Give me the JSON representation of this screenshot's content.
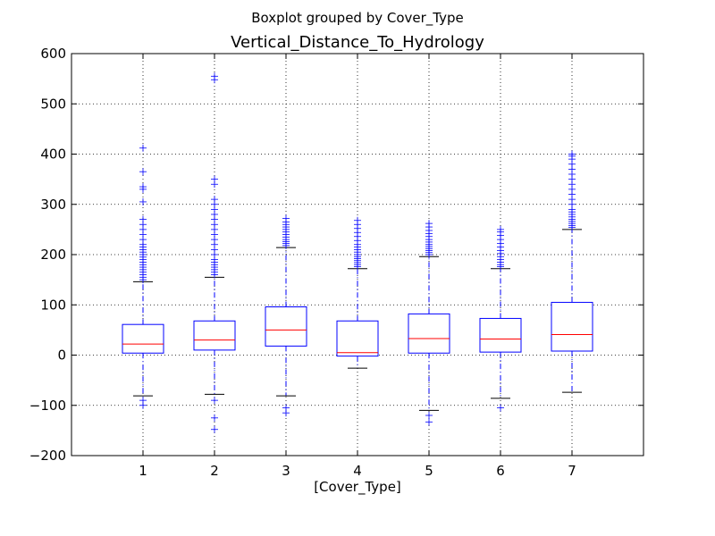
{
  "chart_data": {
    "type": "boxplot",
    "suptitle": "Boxplot grouped by Cover_Type",
    "title": "Vertical_Distance_To_Hydrology",
    "xlabel": "[Cover_Type]",
    "ylabel": "",
    "ylim": [
      -200,
      600
    ],
    "yticks": [
      -200,
      -100,
      0,
      100,
      200,
      300,
      400,
      500,
      600
    ],
    "ytick_labels": [
      "−200",
      "−100",
      "0",
      "100",
      "200",
      "300",
      "400",
      "500",
      "600"
    ],
    "grid": true,
    "categories": [
      "1",
      "2",
      "3",
      "4",
      "5",
      "6",
      "7"
    ],
    "boxes": [
      {
        "category": "1",
        "whisker_low": -81,
        "q1": 4,
        "median": 22,
        "q3": 61,
        "whisker_high": 146,
        "outliers": [
          -90,
          -100,
          150,
          155,
          160,
          165,
          170,
          175,
          180,
          185,
          190,
          195,
          200,
          205,
          210,
          215,
          220,
          230,
          240,
          250,
          260,
          270,
          305,
          330,
          335,
          365,
          412
        ]
      },
      {
        "category": "2",
        "whisker_low": -78,
        "q1": 10,
        "median": 30,
        "q3": 68,
        "whisker_high": 155,
        "outliers": [
          -90,
          -125,
          -148,
          160,
          165,
          170,
          175,
          180,
          185,
          190,
          200,
          210,
          220,
          230,
          240,
          250,
          260,
          270,
          280,
          290,
          300,
          310,
          340,
          350,
          548,
          555
        ]
      },
      {
        "category": "3",
        "whisker_low": -81,
        "q1": 18,
        "median": 50,
        "q3": 96,
        "whisker_high": 214,
        "outliers": [
          -105,
          -115,
          218,
          222,
          226,
          230,
          235,
          240,
          245,
          250,
          255,
          260,
          265,
          272
        ]
      },
      {
        "category": "4",
        "whisker_low": -26,
        "q1": -2,
        "median": 5,
        "q3": 68,
        "whisker_high": 172,
        "outliers": [
          176,
          180,
          184,
          188,
          192,
          196,
          200,
          205,
          210,
          215,
          220,
          228,
          236,
          244,
          252,
          260,
          268
        ]
      },
      {
        "category": "5",
        "whisker_low": -110,
        "q1": 4,
        "median": 33,
        "q3": 82,
        "whisker_high": 196,
        "outliers": [
          -120,
          -133,
          200,
          204,
          208,
          212,
          216,
          220,
          225,
          230,
          236,
          242,
          248,
          255,
          262
        ]
      },
      {
        "category": "6",
        "whisker_low": -86,
        "q1": 6,
        "median": 32,
        "q3": 73,
        "whisker_high": 172,
        "outliers": [
          -105,
          176,
          180,
          185,
          190,
          196,
          202,
          208,
          215,
          222,
          230,
          238,
          245,
          250
        ]
      },
      {
        "category": "7",
        "whisker_low": -74,
        "q1": 8,
        "median": 41,
        "q3": 105,
        "whisker_high": 250,
        "outliers": [
          254,
          258,
          262,
          266,
          270,
          275,
          280,
          285,
          290,
          300,
          310,
          320,
          330,
          340,
          350,
          360,
          370,
          380,
          390,
          396,
          400
        ]
      }
    ]
  },
  "colors": {
    "box": "#0000ff",
    "median": "#ff0000",
    "cap": "#000000",
    "outlier": "#0000ff",
    "grid": "#000000"
  }
}
